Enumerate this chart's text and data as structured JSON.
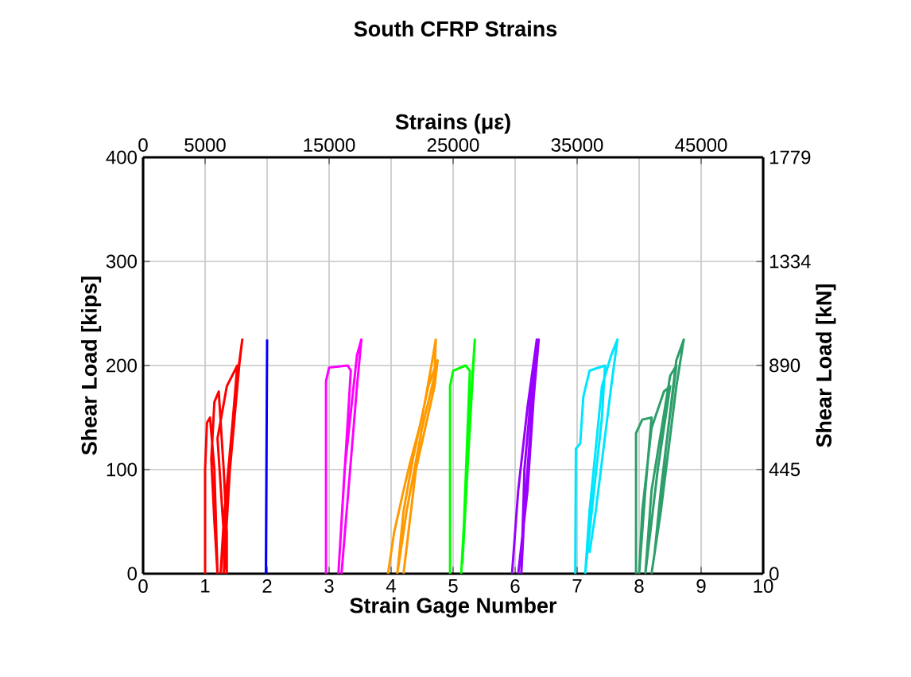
{
  "chart_data": {
    "type": "line",
    "title": "South CFRP Strains",
    "xlabel": "Strain Gage Number",
    "ylabel": "Shear Load [kips]",
    "x2label": "Strains (με)",
    "y2label": "Shear Load [kN]",
    "xlim": [
      0,
      10
    ],
    "xticks": [
      0,
      1,
      2,
      3,
      4,
      5,
      6,
      7,
      8,
      9,
      10
    ],
    "ylim": [
      0,
      400
    ],
    "yticks": [
      0,
      100,
      200,
      300,
      400
    ],
    "x2lim": [
      0,
      50000
    ],
    "x2ticks": [
      0,
      5000,
      15000,
      25000,
      35000,
      45000
    ],
    "y2lim": [
      0,
      1779
    ],
    "y2ticks": [
      0,
      445,
      890,
      1334,
      1779
    ],
    "grid": true,
    "line_style": "solid",
    "marker": "none",
    "series": [
      {
        "color": "#ff0000",
        "x": [
          1.0,
          1.0,
          1.03,
          1.08,
          1.15,
          1.2,
          1.15,
          1.1,
          1.15,
          1.22,
          1.3,
          1.35,
          1.35,
          1.3,
          1.2,
          1.35,
          1.52,
          1.45,
          1.3,
          1.25,
          1.35,
          1.5,
          1.6,
          1.55,
          1.4,
          1.3
        ],
        "values": [
          0,
          100,
          145,
          150,
          100,
          0,
          50,
          110,
          165,
          175,
          100,
          40,
          0,
          40,
          130,
          180,
          200,
          150,
          50,
          0,
          60,
          180,
          225,
          200,
          100,
          0
        ]
      },
      {
        "color": "#0000ff",
        "x": [
          1.98,
          1.99,
          2.0
        ],
        "values": [
          0,
          110,
          225
        ]
      },
      {
        "color": "#ff00ff",
        "x": [
          2.95,
          2.95,
          3.0,
          3.3,
          3.35,
          3.15,
          3.25,
          3.45,
          3.52,
          3.45,
          3.2
        ],
        "values": [
          0,
          185,
          198,
          200,
          195,
          0,
          100,
          210,
          225,
          180,
          0
        ]
      },
      {
        "color": "#ff9900",
        "x": [
          3.95,
          4.05,
          4.2,
          4.3,
          4.5,
          4.65,
          4.72,
          4.7,
          4.5,
          4.25,
          4.1,
          4.2,
          4.35,
          4.6,
          4.75,
          4.7,
          4.4,
          4.2
        ],
        "values": [
          0,
          40,
          80,
          105,
          150,
          200,
          225,
          190,
          140,
          60,
          0,
          60,
          110,
          180,
          205,
          180,
          100,
          0
        ]
      },
      {
        "color": "#00ff00",
        "x": [
          4.95,
          4.95,
          5.0,
          5.2,
          5.27,
          5.15,
          5.25,
          5.35,
          5.3,
          5.13
        ],
        "values": [
          0,
          180,
          195,
          200,
          195,
          10,
          120,
          225,
          180,
          0
        ]
      },
      {
        "color": "#9900ff",
        "x": [
          5.95,
          6.05,
          6.2,
          6.35,
          6.3,
          6.15,
          6.1,
          6.15,
          6.3,
          6.38,
          6.3,
          6.2,
          6.05
        ],
        "values": [
          0,
          80,
          160,
          225,
          200,
          100,
          0,
          60,
          180,
          225,
          170,
          80,
          0
        ]
      },
      {
        "color": "#00e5ff",
        "x": [
          6.97,
          6.98,
          7.05,
          7.1,
          7.2,
          7.45,
          7.4,
          7.2,
          7.13,
          7.2,
          7.4,
          7.55,
          7.65,
          7.55,
          7.3,
          7.2
        ],
        "values": [
          0,
          120,
          125,
          170,
          195,
          200,
          150,
          40,
          0,
          60,
          180,
          210,
          225,
          180,
          60,
          20
        ]
      },
      {
        "color": "#2e9e6a",
        "x": [
          7.95,
          7.95,
          8.05,
          8.2,
          8.1,
          8.0,
          8.05,
          8.2,
          8.4,
          8.5,
          8.3,
          8.1,
          8.2,
          8.5,
          8.6,
          8.45,
          8.25,
          8.35,
          8.6,
          8.72,
          8.6,
          8.35,
          8.2
        ],
        "values": [
          0,
          135,
          148,
          150,
          80,
          0,
          60,
          140,
          175,
          180,
          100,
          0,
          80,
          190,
          200,
          130,
          20,
          80,
          205,
          225,
          180,
          60,
          0
        ]
      }
    ]
  }
}
